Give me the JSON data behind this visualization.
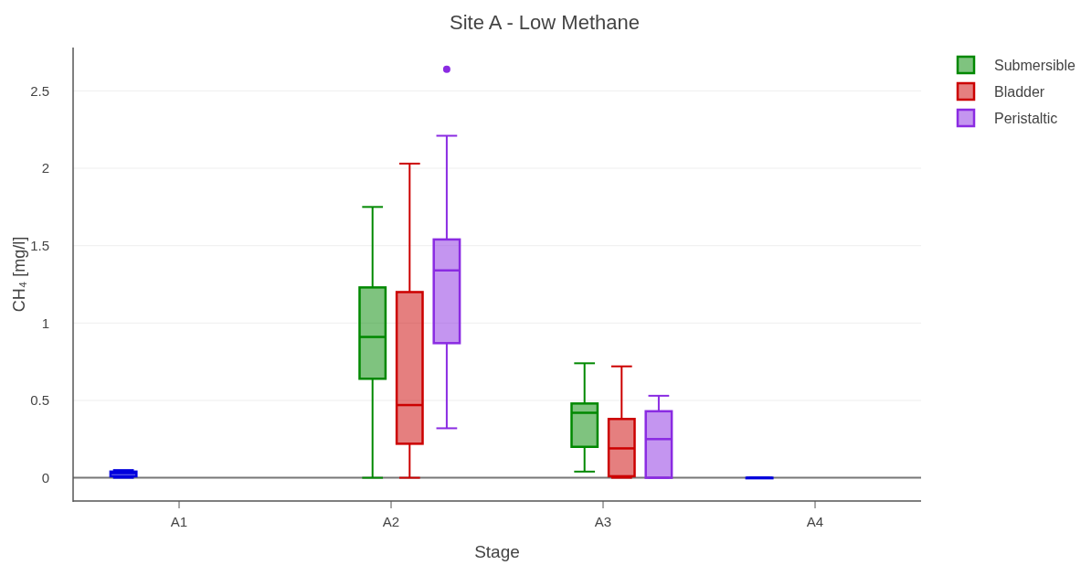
{
  "chart_data": {
    "type": "box",
    "title": "Site A - Low Methane",
    "xlabel": "Stage",
    "ylabel": "CH₄ [mg/l]",
    "categories": [
      "A1",
      "A2",
      "A3",
      "A4"
    ],
    "ylim": [
      -0.15,
      2.78
    ],
    "yticks": [
      0,
      0.5,
      1,
      1.5,
      2,
      2.5
    ],
    "grid": "y",
    "legend": "top right",
    "series": [
      {
        "color": "#0000dd",
        "boxes": [
          {
            "low": 0,
            "q1": 0.01,
            "median": 0.03,
            "q3": 0.04,
            "high": 0.05
          },
          null,
          null,
          {
            "low": 0,
            "q1": 0,
            "median": 0,
            "q3": 0,
            "high": 0
          }
        ]
      },
      {
        "name": "Submersible",
        "color": "#008800",
        "boxes": [
          null,
          {
            "low": 0,
            "q1": 0.64,
            "median": 0.91,
            "q3": 1.23,
            "high": 1.75
          },
          {
            "low": 0.04,
            "q1": 0.2,
            "median": 0.42,
            "q3": 0.48,
            "high": 0.74
          },
          null
        ]
      },
      {
        "name": "Bladder",
        "color": "#cc0000",
        "boxes": [
          null,
          {
            "low": 0,
            "q1": 0.22,
            "median": 0.47,
            "q3": 1.2,
            "high": 2.03
          },
          {
            "low": 0,
            "q1": 0.01,
            "median": 0.19,
            "q3": 0.38,
            "high": 0.72
          },
          null
        ]
      },
      {
        "name": "Peristaltic",
        "color": "#8a2be2",
        "boxes": [
          null,
          {
            "low": 0.32,
            "q1": 0.87,
            "median": 1.34,
            "q3": 1.54,
            "high": 2.21,
            "outliers": [
              2.64
            ]
          },
          {
            "low": 0,
            "q1": 0,
            "median": 0.25,
            "q3": 0.43,
            "high": 0.53
          },
          null
        ]
      }
    ]
  }
}
